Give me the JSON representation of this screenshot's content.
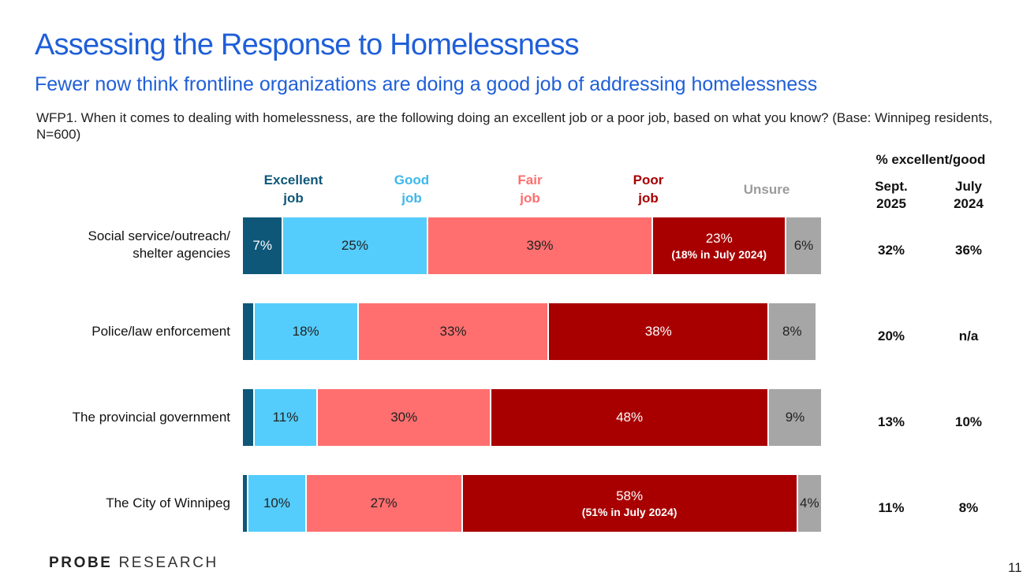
{
  "title": "Assessing the Response to Homelessness",
  "subtitle": "Fewer now think frontline organizations are doing a good job of addressing homelessness",
  "question": "WFP1. When it comes to dealing with homelessness, are the following doing an excellent job or a poor job, based on what you know? (Base: Winnipeg residents, N=600)",
  "legend": [
    {
      "line1": "Excellent",
      "line2": "job",
      "color": "#0e5778"
    },
    {
      "line1": "Good",
      "line2": "job",
      "color": "#3cb8ec"
    },
    {
      "line1": "Fair",
      "line2": "job",
      "color": "#ff6f6f"
    },
    {
      "line1": "Poor",
      "line2": "job",
      "color": "#a80000"
    },
    {
      "line1": "Unsure",
      "line2": "",
      "color": "#9b9b9b"
    }
  ],
  "summary_header": "% excellent/good",
  "summary_columns": [
    {
      "line1": "Sept.",
      "line2": "2025"
    },
    {
      "line1": "July",
      "line2": "2024"
    }
  ],
  "footer": {
    "logo_bold": "PROBE",
    "logo_rest": "RESEARCH",
    "page_number": "11"
  },
  "chart_data": {
    "type": "bar",
    "orientation": "horizontal",
    "stacked": true,
    "title": "Assessing the Response to Homelessness",
    "categories": [
      "Social service/outreach/ shelter agencies",
      "Police/law enforcement",
      "The provincial government",
      "The City of Winnipeg"
    ],
    "series": [
      {
        "name": "Excellent job",
        "color": "#0e5778",
        "text_color": "#ffffff",
        "values": [
          7,
          2,
          2,
          1
        ],
        "labels": [
          "7%",
          "",
          "",
          ""
        ]
      },
      {
        "name": "Good job",
        "color": "#55cdfc",
        "text_color": "#222222",
        "values": [
          25,
          18,
          11,
          10
        ],
        "labels": [
          "25%",
          "18%",
          "11%",
          "10%"
        ]
      },
      {
        "name": "Fair job",
        "color": "#ff6f6f",
        "text_color": "#222222",
        "values": [
          39,
          33,
          30,
          27
        ],
        "labels": [
          "39%",
          "33%",
          "30%",
          "27%"
        ]
      },
      {
        "name": "Poor job",
        "color": "#a80000",
        "text_color": "#ffffff",
        "values": [
          23,
          38,
          48,
          58
        ],
        "labels": [
          "23%",
          "38%",
          "48%",
          "58%"
        ]
      },
      {
        "name": "Unsure",
        "color": "#a6a6a6",
        "text_color": "#222222",
        "values": [
          6,
          8,
          9,
          4
        ],
        "labels": [
          "6%",
          "8%",
          "9%",
          "4%"
        ]
      }
    ],
    "notes": [
      {
        "category": 0,
        "series": 3,
        "text": "(18% in July 2024)"
      },
      {
        "category": 3,
        "series": 3,
        "text": "(51% in July 2024)"
      }
    ],
    "excellent_good": {
      "sept_2025": [
        "32%",
        "20%",
        "13%",
        "11%"
      ],
      "july_2024": [
        "36%",
        "n/a",
        "10%",
        "8%"
      ]
    }
  }
}
